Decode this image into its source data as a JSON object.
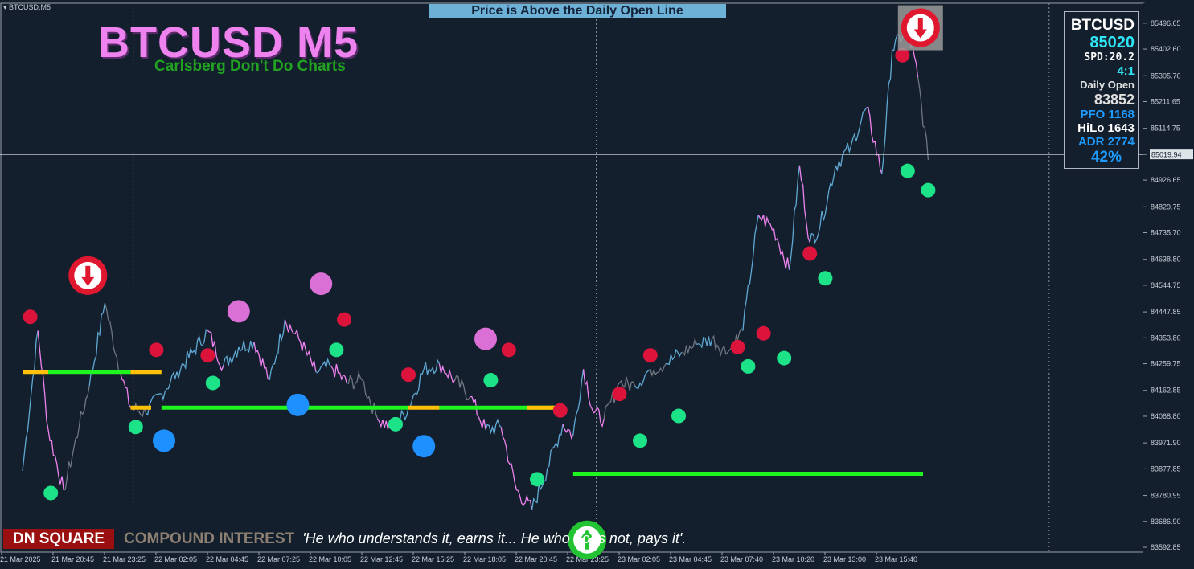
{
  "window": {
    "symbol_tag": "BTCUSD,M5"
  },
  "overlay": {
    "title": "BTCUSD M5",
    "subtitle": "Carlsberg Don't Do Charts",
    "banner": "Price is Above the Daily Open Line"
  },
  "info_panel": {
    "symbol": "BTCUSD",
    "price": "85020",
    "spread": "SPD:20.2",
    "ratio": "4:1",
    "daily_open_label": "Daily Open",
    "daily_open_value": "83852",
    "pfo": "PFO 1168",
    "hilo": "HiLo 1643",
    "adr": "ADR 2774",
    "pct": "42%"
  },
  "footer": {
    "badge": "DN SQUARE",
    "label": "COMPOUND INTEREST",
    "quote": "'He who understands it, earns it... He who does not, pays it'."
  },
  "colors": {
    "background": "#131f2d",
    "up": "#5fa8d3",
    "down": "#ee82ee",
    "neutral": "#6e7780",
    "green_line": "#1ff51f",
    "orange_line": "#ffc107",
    "red_dot": "#dc143c",
    "green_dot": "#1de388",
    "blue_dot": "#1e90ff",
    "violet_dot": "#da70d6"
  },
  "chart_data": {
    "type": "line",
    "ylim": [
      83592.85,
      85540
    ],
    "y_ticks": [
      "85496.65",
      "85402.60",
      "85305.70",
      "85211.65",
      "85114.75",
      "85019.94",
      "84926.65",
      "84829.75",
      "84735.70",
      "84638.80",
      "84544.75",
      "84447.85",
      "84353.80",
      "84259.75",
      "84162.85",
      "84068.80",
      "83971.90",
      "83877.85",
      "83780.95",
      "83686.90",
      "83592.85"
    ],
    "x_ticks": [
      "21 Mar 2025",
      "21 Mar 20:45",
      "21 Mar 23:25",
      "22 Mar 02:05",
      "22 Mar 04:45",
      "22 Mar 07:25",
      "22 Mar 10:05",
      "22 Mar 12:45",
      "22 Mar 15:25",
      "22 Mar 18:05",
      "22 Mar 20:45",
      "22 Mar 23:25",
      "23 Mar 02:05",
      "23 Mar 04:45",
      "23 Mar 07:40",
      "23 Mar 10:20",
      "23 Mar 13:00",
      "23 Mar 15:40"
    ],
    "current_price_label": "85019.94",
    "current_price": 85019.94,
    "n_ticks": 18,
    "series": [
      {
        "x": [
          0,
          0.3,
          0.5,
          0.8,
          1.1,
          1.3,
          1.6,
          1.9,
          2.1,
          2.4,
          2.7,
          3.0,
          3.3,
          3.6,
          3.9,
          4.2,
          4.5,
          4.8,
          5.1,
          5.4,
          5.7,
          6.0,
          6.3,
          6.6,
          6.9,
          7.2,
          7.5,
          7.8,
          8.1,
          8.4,
          8.7,
          9.0,
          9.3,
          9.6,
          9.9,
          10.2,
          10.5,
          10.7,
          10.9,
          11.1,
          11.3,
          11.6,
          11.9,
          12.2,
          12.5,
          12.8,
          13.1,
          13.4,
          13.7,
          14.0,
          14.3,
          14.6,
          14.9,
          15.1,
          15.3,
          15.5,
          15.8,
          16.1,
          16.4,
          16.7,
          16.9,
          17.2,
          17.4,
          17.6
        ],
        "values": [
          83870,
          84380,
          84020,
          83800,
          84030,
          84180,
          84480,
          84230,
          84100,
          84080,
          84150,
          84230,
          84300,
          84380,
          84250,
          84320,
          84340,
          84200,
          84420,
          84340,
          84230,
          84250,
          84190,
          84200,
          84060,
          84020,
          84100,
          84240,
          84260,
          84200,
          84140,
          84020,
          84030,
          83800,
          83730,
          83880,
          84040,
          84000,
          84240,
          84080,
          84060,
          84190,
          84180,
          84240,
          84260,
          84300,
          84330,
          84350,
          84300,
          84380,
          84800,
          84750,
          84600,
          84980,
          84700,
          84760,
          84980,
          85050,
          85190,
          84950,
          85400,
          85480,
          85300,
          85000
        ]
      }
    ],
    "daily_open_green_segments": [
      [
        0.5,
        2.1,
        84230
      ],
      [
        2.7,
        7.5,
        84100
      ],
      [
        8.1,
        10.5,
        84100
      ],
      [
        10.7,
        17.5,
        83860
      ]
    ],
    "daily_open_orange_segments": [
      [
        0,
        0.5,
        84230
      ],
      [
        2.1,
        2.7,
        84230
      ],
      [
        2.1,
        2.5,
        84100
      ],
      [
        7.5,
        8.1,
        84100
      ],
      [
        9.8,
        10.5,
        84100
      ]
    ],
    "red_dots": [
      [
        0.15,
        84430
      ],
      [
        2.6,
        84310
      ],
      [
        3.6,
        84290
      ],
      [
        6.25,
        84420
      ],
      [
        7.5,
        84220
      ],
      [
        9.45,
        84310
      ],
      [
        10.45,
        84090
      ],
      [
        11.6,
        84150
      ],
      [
        12.2,
        84290
      ],
      [
        13.9,
        84320
      ],
      [
        14.4,
        84370
      ],
      [
        15.3,
        84660
      ],
      [
        17.1,
        85380
      ]
    ],
    "green_dots": [
      [
        0.55,
        83790
      ],
      [
        2.2,
        84030
      ],
      [
        3.7,
        84190
      ],
      [
        6.1,
        84310
      ],
      [
        7.25,
        84040
      ],
      [
        9.1,
        84200
      ],
      [
        10.0,
        83840
      ],
      [
        12.0,
        83980
      ],
      [
        12.75,
        84070
      ],
      [
        14.1,
        84250
      ],
      [
        14.8,
        84280
      ],
      [
        15.6,
        84570
      ],
      [
        17.2,
        84960
      ],
      [
        17.6,
        84890
      ]
    ],
    "blue_dots": [
      [
        2.75,
        83980,
        14
      ],
      [
        5.35,
        84110,
        14
      ],
      [
        7.8,
        83960,
        14
      ]
    ],
    "violet_dots": [
      [
        4.2,
        84450,
        14
      ],
      [
        5.8,
        84550,
        14
      ],
      [
        9.0,
        84350,
        14
      ]
    ],
    "arrow_down_markers": [
      [
        1.27,
        84580
      ],
      [
        17.45,
        85480
      ]
    ],
    "arrow_up_markers": [
      [
        10.97,
        83620
      ]
    ],
    "vlines": [
      2.15,
      11.15,
      19.95
    ]
  }
}
